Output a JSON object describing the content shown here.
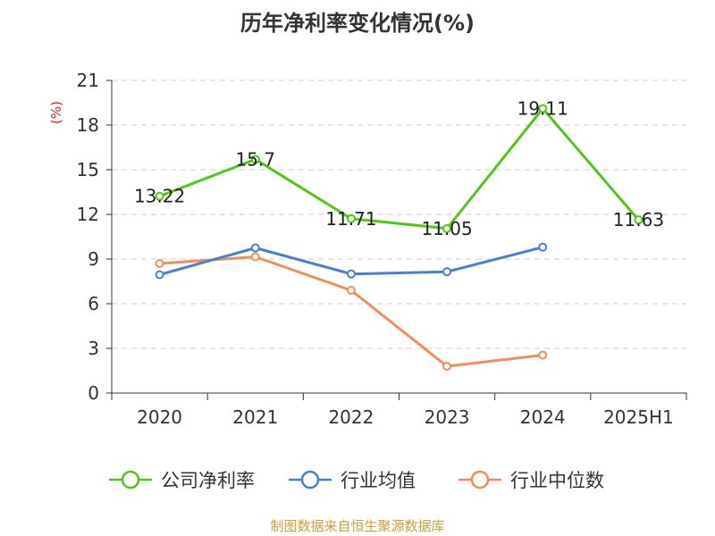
{
  "chart_data": {
    "type": "line",
    "title": "历年净利率变化情况(%)",
    "ylabel": "(%)",
    "xlabel": "",
    "categories": [
      "2020",
      "2021",
      "2022",
      "2023",
      "2024",
      "2025H1"
    ],
    "ylim": [
      0,
      21
    ],
    "yticks": [
      0,
      3,
      6,
      9,
      12,
      15,
      18,
      21
    ],
    "grid": true,
    "legend_position": "bottom",
    "series": [
      {
        "name": "公司净利率",
        "color": "#52c41a",
        "values": [
          13.22,
          15.7,
          11.71,
          11.05,
          19.11,
          11.63
        ],
        "labels": [
          "13.22",
          "15.7",
          "11.71",
          "11.05",
          "19.11",
          "11.63"
        ]
      },
      {
        "name": "行业均值",
        "color": "#4a7fd8",
        "values": [
          7.95,
          9.75,
          8.0,
          8.15,
          9.8,
          null
        ]
      },
      {
        "name": "行业中位数",
        "color": "#f28c5a",
        "values": [
          8.7,
          9.15,
          6.9,
          1.8,
          2.55,
          null
        ]
      }
    ],
    "source": "制图数据来自恒生聚源数据库",
    "source_color": "#c8a03c"
  }
}
